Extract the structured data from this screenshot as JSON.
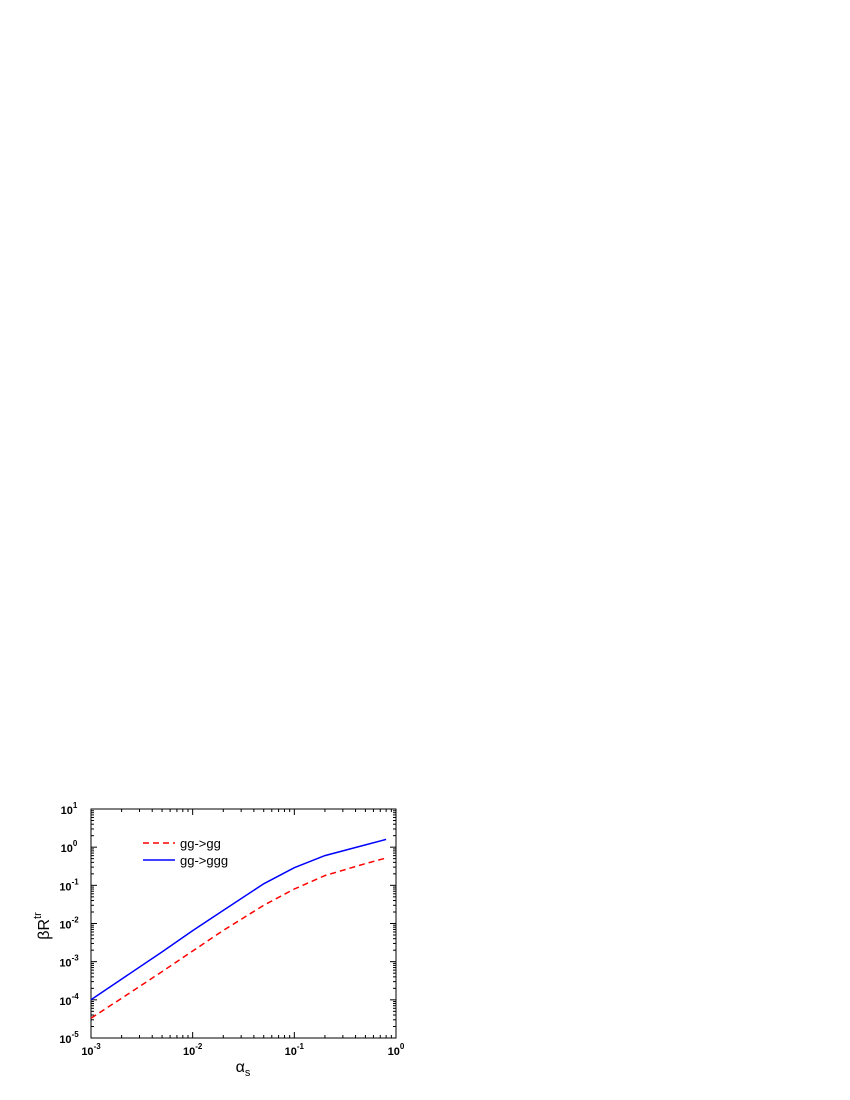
{
  "chart_data": {
    "type": "line",
    "xscale": "log",
    "yscale": "log",
    "xlim": [
      0.001,
      1
    ],
    "ylim": [
      1e-05,
      10
    ],
    "xlabel": {
      "base": "α",
      "sub": "s"
    },
    "ylabel": {
      "base": "βR",
      "sup": "tr"
    },
    "x_ticks": [
      {
        "value": 0.001,
        "base": "10",
        "exp": "-3"
      },
      {
        "value": 0.01,
        "base": "10",
        "exp": "-2"
      },
      {
        "value": 0.1,
        "base": "10",
        "exp": "-1"
      },
      {
        "value": 1,
        "base": "10",
        "exp": "0"
      }
    ],
    "y_ticks": [
      {
        "value": 1e-05,
        "base": "10",
        "exp": "-5"
      },
      {
        "value": 0.0001,
        "base": "10",
        "exp": "-4"
      },
      {
        "value": 0.001,
        "base": "10",
        "exp": "-3"
      },
      {
        "value": 0.01,
        "base": "10",
        "exp": "-2"
      },
      {
        "value": 0.1,
        "base": "10",
        "exp": "-1"
      },
      {
        "value": 1,
        "base": "10",
        "exp": "0"
      },
      {
        "value": 10,
        "base": "10",
        "exp": "1"
      }
    ],
    "grid": false,
    "legend": "upper-left",
    "series": [
      {
        "name": "gg->gg",
        "color": "#ff0000",
        "dash": "dashed",
        "x": [
          0.001,
          0.002,
          0.005,
          0.01,
          0.02,
          0.05,
          0.1,
          0.2,
          0.5,
          0.8
        ],
        "y": [
          3.3e-05,
          0.00011,
          0.00055,
          0.0019,
          0.0066,
          0.03,
          0.08,
          0.18,
          0.37,
          0.52
        ]
      },
      {
        "name": "gg->ggg",
        "color": "#0000ff",
        "dash": "solid",
        "x": [
          0.001,
          0.002,
          0.005,
          0.01,
          0.02,
          0.05,
          0.1,
          0.2,
          0.5,
          0.8
        ],
        "y": [
          0.0001,
          0.00035,
          0.0018,
          0.0065,
          0.022,
          0.11,
          0.29,
          0.6,
          1.15,
          1.6
        ]
      }
    ]
  }
}
